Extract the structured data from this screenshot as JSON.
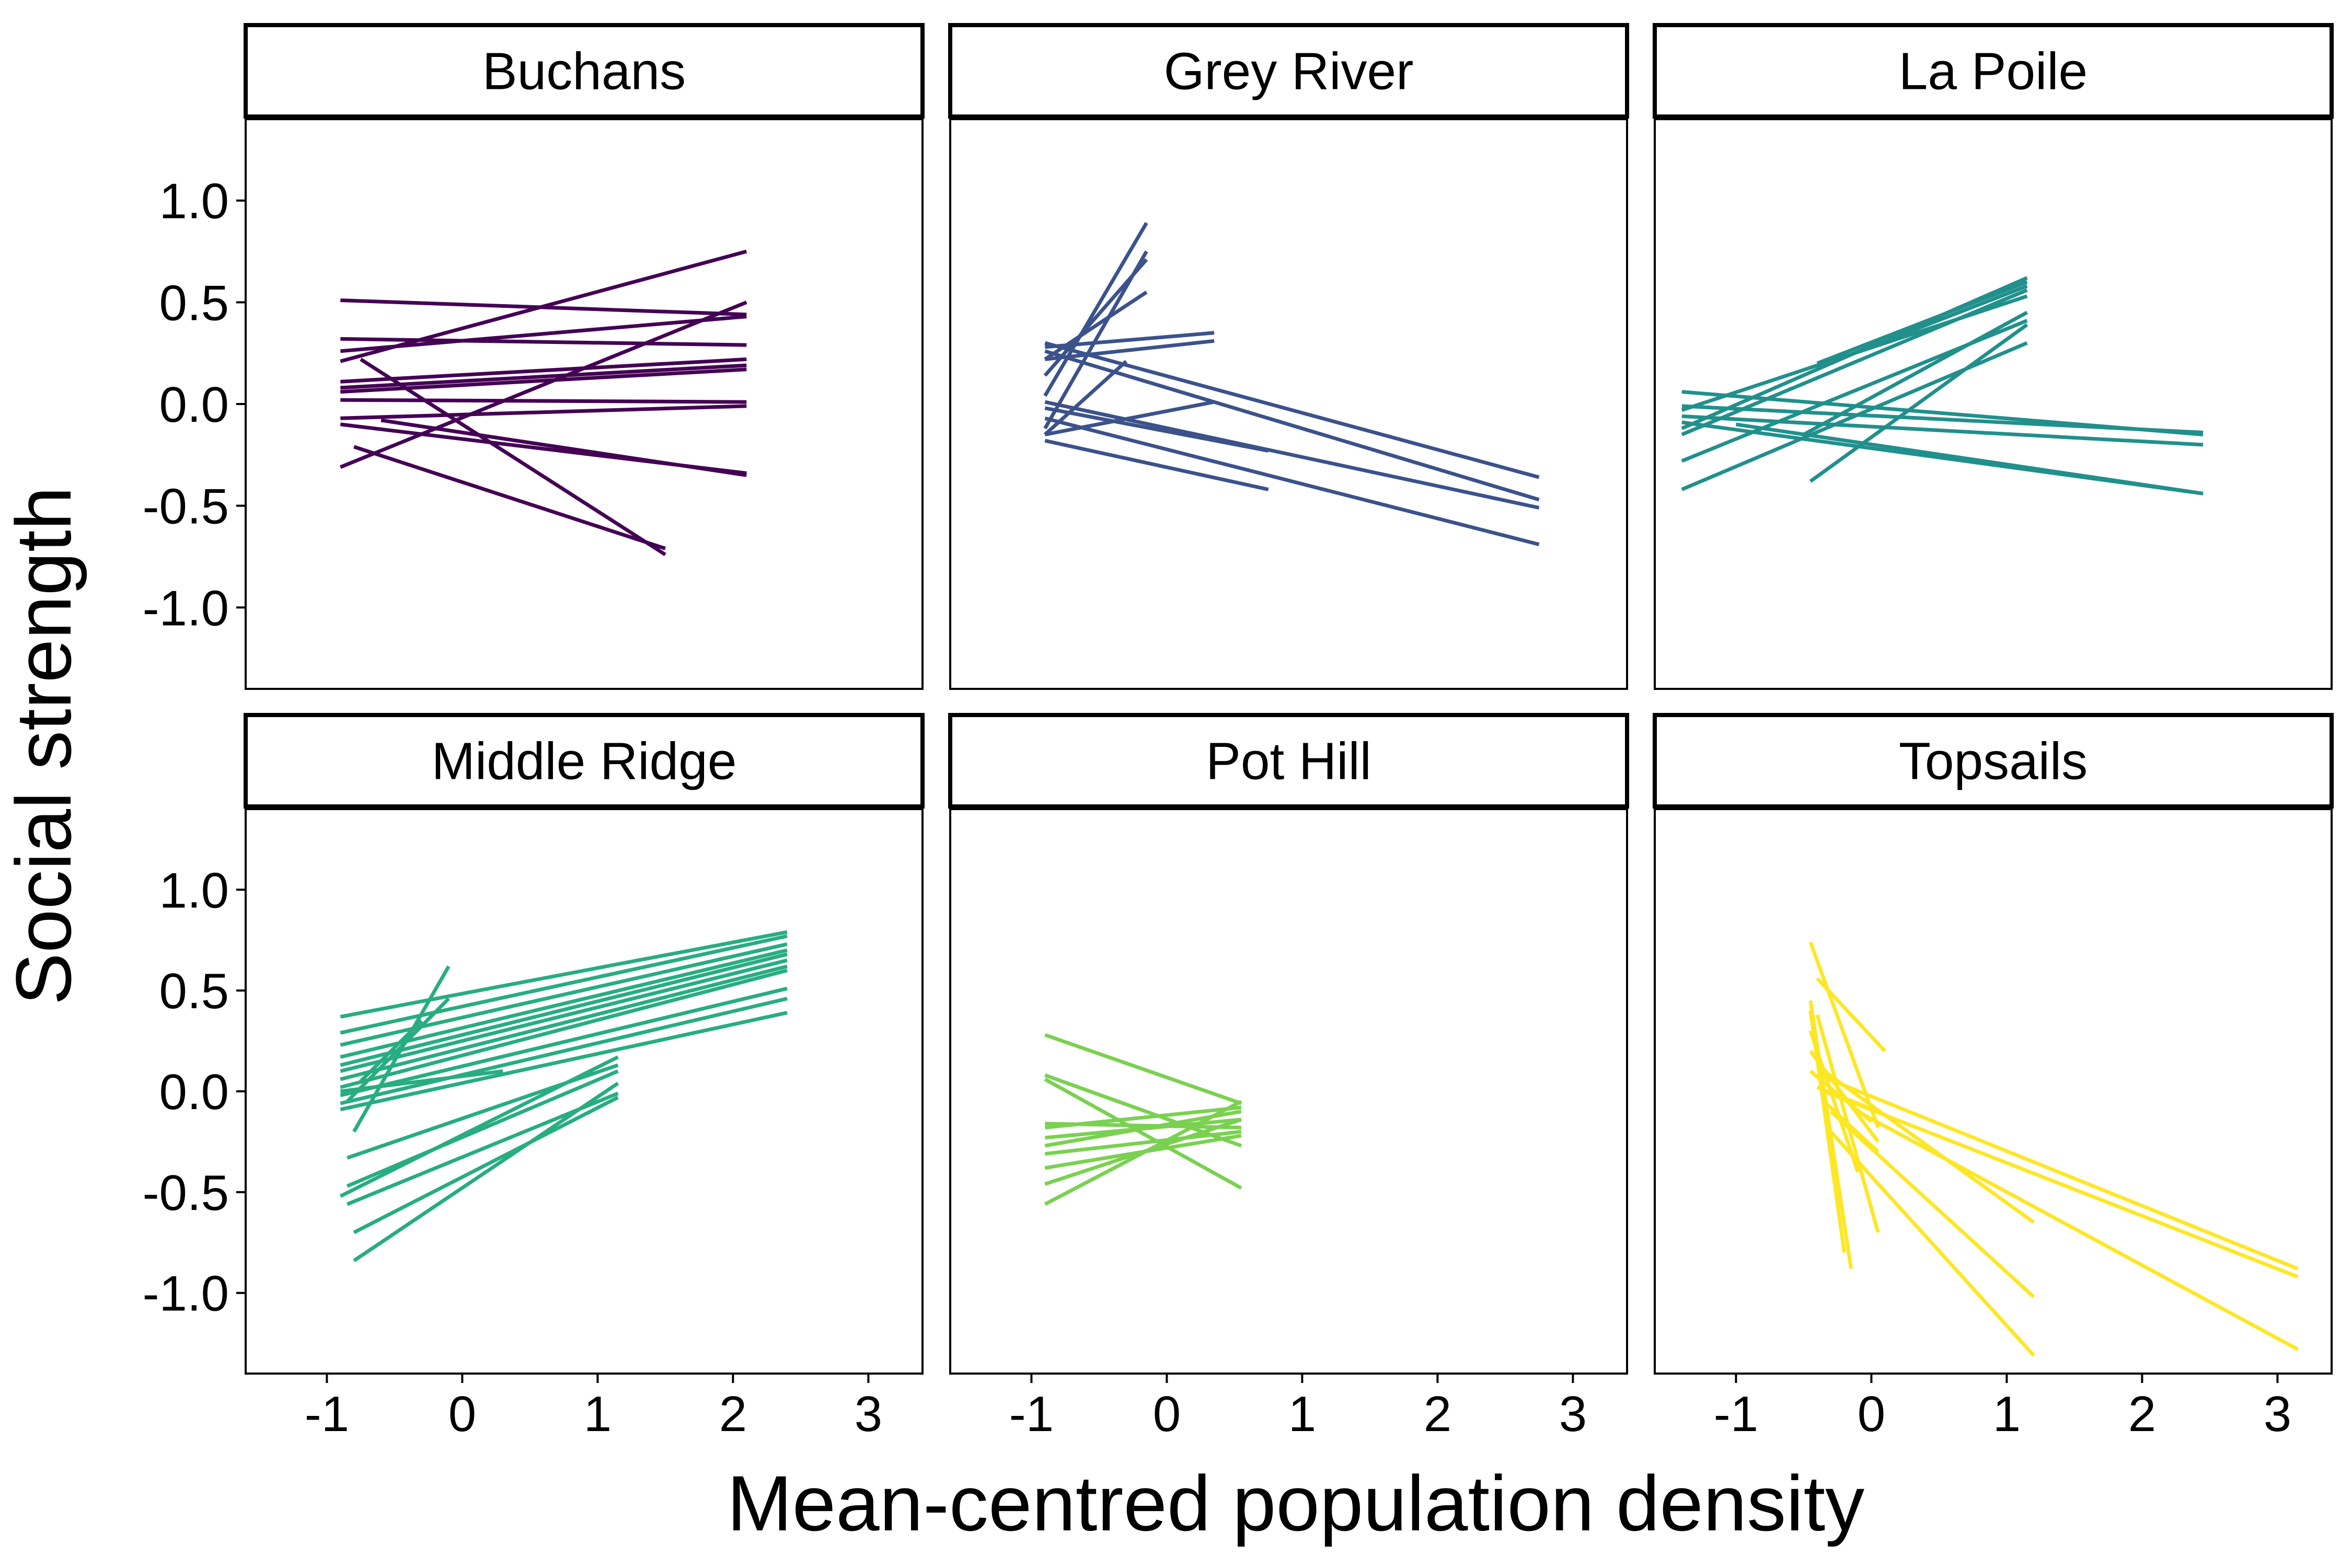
{
  "chart_data": {
    "type": "line",
    "layout": "facet-grid 2x3",
    "xlabel": "Mean-centred population density",
    "ylabel": "Social strength",
    "xlim": [
      -1.6,
      3.4
    ],
    "ylim": [
      -1.4,
      1.4
    ],
    "x_ticks": [
      -1,
      0,
      1,
      2,
      3
    ],
    "x_tick_labels": [
      "-1",
      "0",
      "1",
      "2",
      "3"
    ],
    "y_ticks": [
      1.0,
      0.5,
      0.0,
      -0.5,
      -1.0
    ],
    "y_tick_labels": [
      "1.0",
      "0.5",
      "0.0",
      "-0.5",
      "-1.0"
    ],
    "grid": false,
    "facets": [
      {
        "name": "Buchans",
        "color": "#440154",
        "lines": [
          [
            [
              -0.9,
              0.51
            ],
            [
              2.1,
              0.44
            ]
          ],
          [
            [
              -0.9,
              0.32
            ],
            [
              2.1,
              0.29
            ]
          ],
          [
            [
              -0.9,
              0.21
            ],
            [
              2.1,
              0.75
            ]
          ],
          [
            [
              -0.9,
              0.26
            ],
            [
              2.1,
              0.43
            ]
          ],
          [
            [
              -0.9,
              0.11
            ],
            [
              2.1,
              0.22
            ]
          ],
          [
            [
              -0.9,
              0.08
            ],
            [
              2.1,
              0.19
            ]
          ],
          [
            [
              -0.9,
              0.06
            ],
            [
              2.1,
              0.17
            ]
          ],
          [
            [
              -0.9,
              0.02
            ],
            [
              2.1,
              0.01
            ]
          ],
          [
            [
              -0.9,
              -0.07
            ],
            [
              2.1,
              -0.01
            ]
          ],
          [
            [
              -0.9,
              -0.1
            ],
            [
              2.1,
              -0.34
            ]
          ],
          [
            [
              -0.9,
              -0.31
            ],
            [
              2.1,
              0.5
            ]
          ],
          [
            [
              -0.75,
              0.22
            ],
            [
              1.5,
              -0.74
            ]
          ],
          [
            [
              -0.8,
              -0.21
            ],
            [
              1.5,
              -0.71
            ]
          ],
          [
            [
              -0.6,
              -0.08
            ],
            [
              2.1,
              -0.35
            ]
          ]
        ]
      },
      {
        "name": "Grey River",
        "color": "#3B528B",
        "lines": [
          [
            [
              -0.9,
              0.3
            ],
            [
              2.75,
              -0.36
            ]
          ],
          [
            [
              -0.9,
              0.26
            ],
            [
              2.75,
              -0.47
            ]
          ],
          [
            [
              -0.9,
              0.01
            ],
            [
              2.75,
              -0.51
            ]
          ],
          [
            [
              -0.9,
              -0.07
            ],
            [
              2.75,
              -0.69
            ]
          ],
          [
            [
              -0.9,
              -0.02
            ],
            [
              0.75,
              -0.23
            ]
          ],
          [
            [
              -0.9,
              -0.18
            ],
            [
              0.75,
              -0.42
            ]
          ],
          [
            [
              -0.9,
              0.04
            ],
            [
              -0.15,
              0.89
            ]
          ],
          [
            [
              -0.9,
              0.14
            ],
            [
              -0.15,
              0.71
            ]
          ],
          [
            [
              -0.9,
              -0.12
            ],
            [
              -0.15,
              0.75
            ]
          ],
          [
            [
              -0.9,
              0.22
            ],
            [
              -0.15,
              0.55
            ]
          ],
          [
            [
              -0.9,
              -0.15
            ],
            [
              -0.3,
              0.21
            ]
          ],
          [
            [
              -0.9,
              0.28
            ],
            [
              0.35,
              0.35
            ]
          ],
          [
            [
              -0.9,
              0.22
            ],
            [
              0.35,
              0.31
            ]
          ],
          [
            [
              -0.9,
              -0.15
            ],
            [
              0.35,
              0.01
            ]
          ]
        ]
      },
      {
        "name": "La Poile",
        "color": "#21908C",
        "lines": [
          [
            [
              -1.4,
              0.06
            ],
            [
              2.45,
              -0.15
            ]
          ],
          [
            [
              -1.4,
              -0.01
            ],
            [
              2.45,
              -0.14
            ]
          ],
          [
            [
              -1.4,
              -0.06
            ],
            [
              2.45,
              -0.2
            ]
          ],
          [
            [
              -1.4,
              -0.09
            ],
            [
              2.45,
              -0.44
            ]
          ],
          [
            [
              -1.4,
              -0.12
            ],
            [
              1.15,
              0.62
            ]
          ],
          [
            [
              -1.4,
              -0.15
            ],
            [
              1.15,
              0.56
            ]
          ],
          [
            [
              -1.4,
              -0.28
            ],
            [
              1.15,
              0.41
            ]
          ],
          [
            [
              -1.4,
              -0.42
            ],
            [
              1.15,
              0.3
            ]
          ],
          [
            [
              -1.4,
              -0.03
            ],
            [
              1.15,
              0.53
            ]
          ],
          [
            [
              -0.45,
              -0.38
            ],
            [
              1.15,
              0.39
            ]
          ],
          [
            [
              -1.0,
              -0.1
            ],
            [
              2.45,
              -0.44
            ]
          ],
          [
            [
              -0.5,
              -0.15
            ],
            [
              1.15,
              0.45
            ]
          ],
          [
            [
              -0.4,
              0.2
            ],
            [
              1.15,
              0.6
            ]
          ],
          [
            [
              -0.4,
              0.18
            ],
            [
              1.15,
              0.58
            ]
          ]
        ]
      },
      {
        "name": "Middle Ridge",
        "color": "#27AD81",
        "lines": [
          [
            [
              -0.9,
              0.37
            ],
            [
              2.4,
              0.79
            ]
          ],
          [
            [
              -0.9,
              0.29
            ],
            [
              2.4,
              0.77
            ]
          ],
          [
            [
              -0.9,
              0.23
            ],
            [
              2.4,
              0.73
            ]
          ],
          [
            [
              -0.9,
              0.17
            ],
            [
              2.4,
              0.7
            ]
          ],
          [
            [
              -0.9,
              0.13
            ],
            [
              2.4,
              0.68
            ]
          ],
          [
            [
              -0.9,
              0.1
            ],
            [
              2.4,
              0.65
            ]
          ],
          [
            [
              -0.9,
              0.06
            ],
            [
              2.4,
              0.62
            ]
          ],
          [
            [
              -0.9,
              0.02
            ],
            [
              2.4,
              0.6
            ]
          ],
          [
            [
              -0.9,
              -0.02
            ],
            [
              2.4,
              0.51
            ]
          ],
          [
            [
              -0.9,
              -0.06
            ],
            [
              2.4,
              0.46
            ]
          ],
          [
            [
              -0.9,
              -0.09
            ],
            [
              2.4,
              0.39
            ]
          ],
          [
            [
              -0.9,
              0.0
            ],
            [
              0.3,
              0.1
            ]
          ],
          [
            [
              -0.9,
              -0.52
            ],
            [
              1.15,
              0.17
            ]
          ],
          [
            [
              -0.85,
              -0.33
            ],
            [
              1.15,
              0.13
            ]
          ],
          [
            [
              -0.85,
              -0.56
            ],
            [
              1.15,
              -0.01
            ]
          ],
          [
            [
              -0.8,
              -0.7
            ],
            [
              1.15,
              -0.03
            ]
          ],
          [
            [
              -0.8,
              -0.84
            ],
            [
              1.15,
              0.04
            ]
          ],
          [
            [
              -0.85,
              -0.47
            ],
            [
              1.15,
              0.1
            ]
          ],
          [
            [
              -0.8,
              -0.2
            ],
            [
              -0.1,
              0.62
            ]
          ],
          [
            [
              -0.85,
              -0.05
            ],
            [
              -0.1,
              0.46
            ]
          ],
          [
            [
              -0.75,
              0.05
            ],
            [
              -0.3,
              0.35
            ]
          ]
        ]
      },
      {
        "name": "Pot Hill",
        "color": "#7AD151",
        "lines": [
          [
            [
              -0.9,
              0.28
            ],
            [
              0.55,
              -0.06
            ]
          ],
          [
            [
              -0.9,
              0.08
            ],
            [
              0.55,
              -0.27
            ]
          ],
          [
            [
              -0.9,
              0.06
            ],
            [
              0.55,
              -0.48
            ]
          ],
          [
            [
              -0.9,
              -0.16
            ],
            [
              0.55,
              -0.18
            ]
          ],
          [
            [
              -0.9,
              -0.18
            ],
            [
              0.55,
              -0.08
            ]
          ],
          [
            [
              -0.9,
              -0.23
            ],
            [
              0.55,
              -0.14
            ]
          ],
          [
            [
              -0.9,
              -0.27
            ],
            [
              0.55,
              -0.1
            ]
          ],
          [
            [
              -0.9,
              -0.31
            ],
            [
              0.55,
              -0.2
            ]
          ],
          [
            [
              -0.9,
              -0.38
            ],
            [
              0.55,
              -0.22
            ]
          ],
          [
            [
              -0.9,
              -0.56
            ],
            [
              0.55,
              -0.05
            ]
          ],
          [
            [
              -0.9,
              -0.46
            ],
            [
              0.55,
              -0.14
            ]
          ]
        ]
      },
      {
        "name": "Topsails",
        "color": "#FDE725",
        "lines": [
          [
            [
              -0.35,
              0.07
            ],
            [
              3.15,
              -0.88
            ]
          ],
          [
            [
              -0.35,
              0.0
            ],
            [
              3.15,
              -0.92
            ]
          ],
          [
            [
              -0.35,
              0.1
            ],
            [
              1.2,
              -0.65
            ]
          ],
          [
            [
              -0.3,
              -0.1
            ],
            [
              1.2,
              -1.02
            ]
          ],
          [
            [
              -0.3,
              -0.2
            ],
            [
              1.2,
              -1.31
            ]
          ],
          [
            [
              -0.1,
              -0.1
            ],
            [
              3.15,
              -1.28
            ]
          ],
          [
            [
              -0.45,
              0.74
            ],
            [
              0.05,
              -0.18
            ]
          ],
          [
            [
              -0.4,
              0.56
            ],
            [
              0.1,
              0.2
            ]
          ],
          [
            [
              -0.45,
              0.45
            ],
            [
              -0.15,
              -0.88
            ]
          ],
          [
            [
              -0.45,
              0.4
            ],
            [
              -0.2,
              -0.8
            ]
          ],
          [
            [
              -0.4,
              0.38
            ],
            [
              0.05,
              -0.7
            ]
          ],
          [
            [
              -0.45,
              0.3
            ],
            [
              -0.1,
              -0.4
            ]
          ],
          [
            [
              -0.45,
              0.2
            ],
            [
              0.05,
              -0.25
            ]
          ],
          [
            [
              -0.45,
              0.1
            ],
            [
              0.0,
              -0.15
            ]
          ],
          [
            [
              -0.4,
              0.02
            ],
            [
              0.05,
              -0.1
            ]
          ],
          [
            [
              -0.35,
              -0.05
            ],
            [
              0.05,
              -0.3
            ]
          ]
        ]
      }
    ]
  }
}
